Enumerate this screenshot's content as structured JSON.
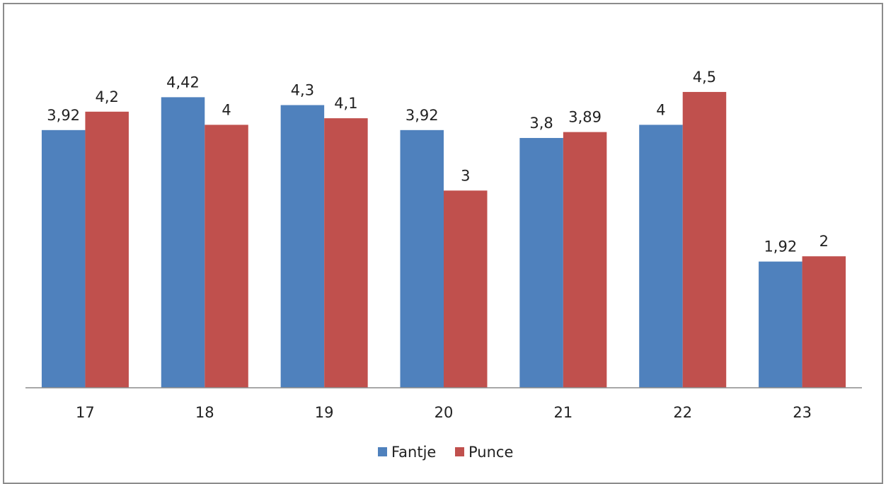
{
  "chart_data": {
    "type": "bar",
    "categories": [
      "17",
      "18",
      "19",
      "20",
      "21",
      "22",
      "23"
    ],
    "series": [
      {
        "name": "Fantje",
        "values": [
          3.92,
          4.42,
          4.3,
          3.92,
          3.8,
          4,
          1.92
        ],
        "value_labels": [
          "3,92",
          "4,42",
          "4,3",
          "3,92",
          "3,8",
          "4",
          "1,92"
        ],
        "color": "#4F81BD"
      },
      {
        "name": "Punce",
        "values": [
          4.2,
          4,
          4.1,
          3,
          3.89,
          4.5,
          2
        ],
        "value_labels": [
          "4,2",
          "4",
          "4,1",
          "3",
          "3,89",
          "4,5",
          "2"
        ],
        "color": "#C0504D"
      }
    ],
    "ylim": [
      0,
      4.9
    ],
    "grid": false,
    "legend_position": "bottom",
    "title": "",
    "xlabel": "",
    "ylabel": ""
  }
}
